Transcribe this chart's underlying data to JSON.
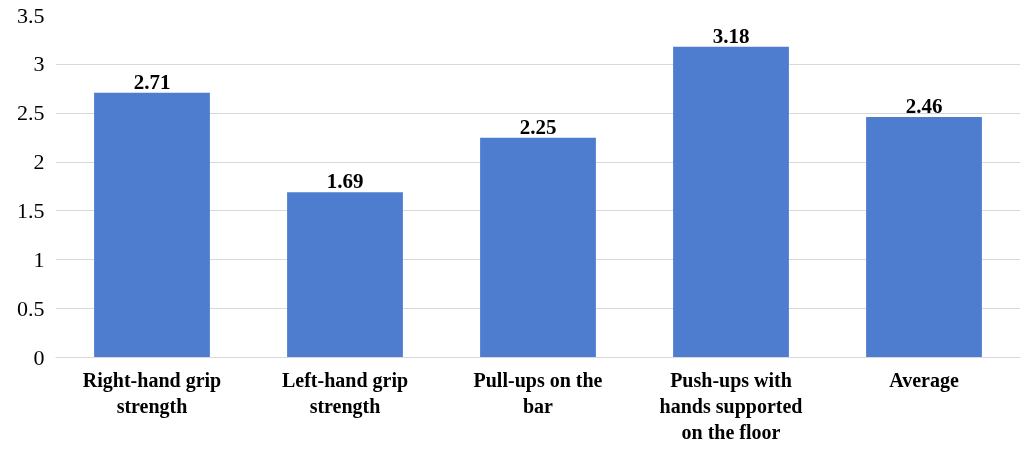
{
  "chart_data": {
    "type": "bar",
    "categories": [
      "Right-hand grip strength",
      "Left-hand grip strength",
      "Pull-ups on the bar",
      "Push-ups with hands supported on the floor",
      "Average"
    ],
    "values": [
      2.71,
      1.69,
      2.25,
      3.18,
      2.46
    ],
    "color": "#4e7dd0",
    "ylim": [
      0,
      3.5
    ],
    "yticks": [
      0,
      0.5,
      1,
      1.5,
      2,
      2.5,
      3,
      3.5
    ],
    "grid": "y",
    "data_labels": true
  }
}
